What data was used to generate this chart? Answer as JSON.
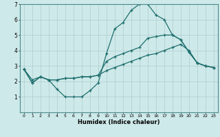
{
  "xlabel": "Humidex (Indice chaleur)",
  "xlim": [
    -0.5,
    23.5
  ],
  "ylim": [
    0,
    7
  ],
  "xticks": [
    0,
    1,
    2,
    3,
    4,
    5,
    6,
    7,
    8,
    9,
    10,
    11,
    12,
    13,
    14,
    15,
    16,
    17,
    18,
    19,
    20,
    21,
    22,
    23
  ],
  "yticks": [
    1,
    2,
    3,
    4,
    5,
    6,
    7
  ],
  "bg_color": "#cee9e9",
  "grid_color": "#b0cccc",
  "line_color": "#1e6e6e",
  "line1_x": [
    0,
    1,
    2,
    3,
    4,
    5,
    6,
    7,
    8,
    9,
    10,
    11,
    12,
    13,
    14,
    15,
    16,
    17,
    18,
    19,
    20,
    21,
    22,
    23
  ],
  "line1_y": [
    2.8,
    1.9,
    2.3,
    2.1,
    1.5,
    1.0,
    1.0,
    1.0,
    1.4,
    1.9,
    3.8,
    5.4,
    5.8,
    6.6,
    7.0,
    7.0,
    6.3,
    6.0,
    5.0,
    4.7,
    3.9,
    3.2,
    3.0,
    2.9
  ],
  "line2_x": [
    0,
    1,
    2,
    3,
    4,
    5,
    6,
    7,
    8,
    9,
    10,
    11,
    12,
    13,
    14,
    15,
    16,
    17,
    18,
    19,
    20,
    21,
    22,
    23
  ],
  "line2_y": [
    2.8,
    1.9,
    2.3,
    2.1,
    2.1,
    2.2,
    2.2,
    2.3,
    2.3,
    2.4,
    3.3,
    3.6,
    3.8,
    4.0,
    4.2,
    4.8,
    4.9,
    5.0,
    5.0,
    4.7,
    3.9,
    3.2,
    3.0,
    2.9
  ],
  "line3_x": [
    0,
    1,
    2,
    3,
    4,
    5,
    6,
    7,
    8,
    9,
    10,
    11,
    12,
    13,
    14,
    15,
    16,
    17,
    18,
    19,
    20,
    21,
    22,
    23
  ],
  "line3_y": [
    2.8,
    2.1,
    2.3,
    2.1,
    2.1,
    2.2,
    2.2,
    2.3,
    2.3,
    2.4,
    2.7,
    2.9,
    3.1,
    3.3,
    3.5,
    3.7,
    3.8,
    4.0,
    4.2,
    4.4,
    4.0,
    3.2,
    3.0,
    2.9
  ]
}
